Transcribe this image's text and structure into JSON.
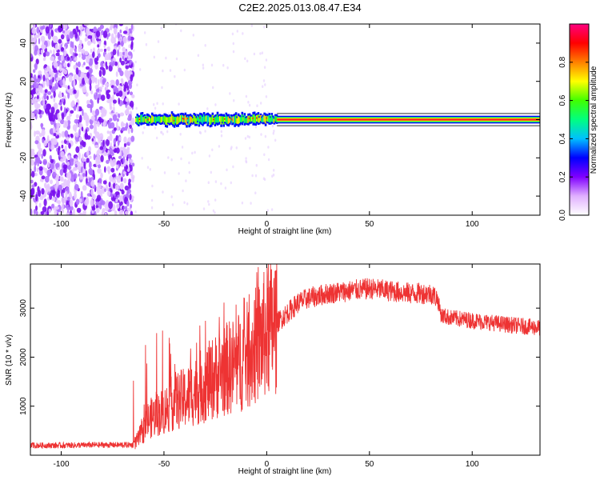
{
  "page": {
    "title": "C2E2.2025.013.08.47.E34"
  },
  "chart_data": [
    {
      "type": "heatmap",
      "xlabel": "Height of straight line (km)",
      "ylabel": "Frequency (Hz)",
      "xlim": [
        -115,
        133
      ],
      "ylim": [
        -50,
        50
      ],
      "xticks": [
        -100,
        -50,
        0,
        50,
        100
      ],
      "yticks": [
        -40,
        -20,
        0,
        20,
        40
      ],
      "colorbar": {
        "label": "Normalized spectral amplitude",
        "range": [
          0,
          1
        ],
        "ticks": [
          0.0,
          0.2,
          0.4,
          0.6,
          0.8
        ],
        "colors": [
          "#ffffff",
          "#e0b0ff",
          "#8000ff",
          "#0000ff",
          "#00c0ff",
          "#00ff80",
          "#40ff00",
          "#ffff00",
          "#ff8000",
          "#ff0000",
          "#ff0080"
        ]
      },
      "regions": [
        {
          "name": "noise",
          "x_range": [
            -115,
            -65
          ],
          "y_range": [
            -50,
            50
          ],
          "amplitude": 0.15
        },
        {
          "name": "signal-start",
          "x_range": [
            -64,
            5
          ],
          "y_center": 0,
          "halfwidth": 3,
          "amplitude": 0.6
        },
        {
          "name": "signal-steady",
          "x_range": [
            5,
            133
          ],
          "y_center": 0,
          "halfwidth": 2,
          "amplitude": 0.95
        }
      ]
    },
    {
      "type": "line",
      "xlabel": "Height of straight line (km)",
      "ylabel": "SNR (10 * v/v)",
      "xlim": [
        -115,
        133
      ],
      "ylim": [
        0,
        3900
      ],
      "xticks": [
        -100,
        -50,
        0,
        50,
        100
      ],
      "yticks": [
        1000,
        2000,
        3000
      ],
      "line_color": "#ee3333",
      "series": [
        {
          "x": [
            -115,
            -100,
            -80,
            -65,
            -62,
            -58,
            -55,
            -50,
            -45,
            -40,
            -35,
            -30,
            -25,
            -20,
            -15,
            -10,
            -5,
            0,
            5,
            10,
            15,
            20,
            30,
            40,
            50,
            60,
            70,
            80,
            83,
            85,
            90,
            100,
            110,
            120,
            133
          ],
          "values": [
            200,
            200,
            210,
            210,
            350,
            700,
            800,
            900,
            1100,
            1150,
            1300,
            1450,
            1600,
            1750,
            1850,
            2000,
            2250,
            2500,
            2700,
            2900,
            3100,
            3200,
            3300,
            3350,
            3400,
            3350,
            3300,
            3300,
            3200,
            2850,
            2800,
            2750,
            2700,
            2650,
            2600
          ]
        }
      ]
    }
  ]
}
